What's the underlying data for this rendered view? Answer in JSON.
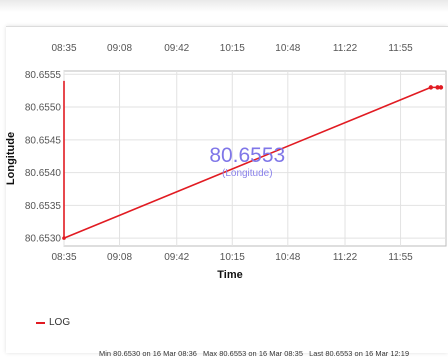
{
  "chart_data": {
    "type": "line",
    "xlabel": "Time",
    "ylabel": "Longitude",
    "x_ticks": [
      "08:35",
      "09:08",
      "09:42",
      "10:15",
      "10:48",
      "11:22",
      "11:55"
    ],
    "y_ticks": [
      "80.6555",
      "80.6550",
      "80.6545",
      "80.6540",
      "80.6535",
      "80.6530"
    ],
    "ylim": [
      80.65288,
      80.65555
    ],
    "xlim": [
      "08:35",
      "12:22"
    ],
    "grid": true,
    "series": [
      {
        "name": "LOG",
        "color": "#e11b22",
        "x": [
          "08:35",
          "08:35",
          "12:13",
          "12:17",
          "12:19"
        ],
        "y": [
          80.6554,
          80.653,
          80.6553,
          80.6553,
          80.6553
        ]
      }
    ],
    "annotation": {
      "value": "80.6553",
      "label": "(Longitude)"
    },
    "legend": {
      "label": "LOG",
      "position": "bottom-left"
    }
  },
  "stats": {
    "min": "Min 80.6530 on 16 Mar 08:36",
    "max": "Max 80.6553 on 16 Mar 08:35",
    "last": "Last 80.6553 on 16 Mar 12:19"
  }
}
